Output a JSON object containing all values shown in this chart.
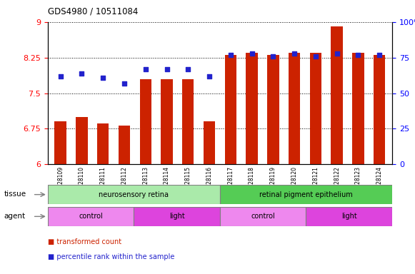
{
  "title": "GDS4980 / 10511084",
  "samples": [
    "GSM928109",
    "GSM928110",
    "GSM928111",
    "GSM928112",
    "GSM928113",
    "GSM928114",
    "GSM928115",
    "GSM928116",
    "GSM928117",
    "GSM928118",
    "GSM928119",
    "GSM928120",
    "GSM928121",
    "GSM928122",
    "GSM928123",
    "GSM928124"
  ],
  "bar_values": [
    6.9,
    7.0,
    6.86,
    6.82,
    7.8,
    7.8,
    7.8,
    6.9,
    8.3,
    8.35,
    8.3,
    8.35,
    8.35,
    8.9,
    8.35,
    8.3
  ],
  "percentile_values": [
    62,
    64,
    61,
    57,
    67,
    67,
    67,
    62,
    77,
    78,
    76,
    78,
    76,
    78,
    77,
    77
  ],
  "ylim_left": [
    6,
    9
  ],
  "ylim_right": [
    0,
    100
  ],
  "yticks_left": [
    6,
    6.75,
    7.5,
    8.25,
    9
  ],
  "yticks_right": [
    0,
    25,
    50,
    75,
    100
  ],
  "bar_color": "#cc2200",
  "dot_color": "#2222cc",
  "tissue_groups": [
    {
      "label": "neurosensory retina",
      "start": 0,
      "end": 8,
      "color": "#aaeaaa"
    },
    {
      "label": "retinal pigment epithelium",
      "start": 8,
      "end": 16,
      "color": "#55cc55"
    }
  ],
  "agent_groups": [
    {
      "label": "control",
      "start": 0,
      "end": 4,
      "color": "#ee88ee"
    },
    {
      "label": "light",
      "start": 4,
      "end": 8,
      "color": "#dd44dd"
    },
    {
      "label": "control",
      "start": 8,
      "end": 12,
      "color": "#ee88ee"
    },
    {
      "label": "light",
      "start": 12,
      "end": 16,
      "color": "#dd44dd"
    }
  ],
  "legend_items": [
    {
      "label": "transformed count",
      "color": "#cc2200"
    },
    {
      "label": "percentile rank within the sample",
      "color": "#2222cc"
    }
  ],
  "tissue_label": "tissue",
  "agent_label": "agent"
}
